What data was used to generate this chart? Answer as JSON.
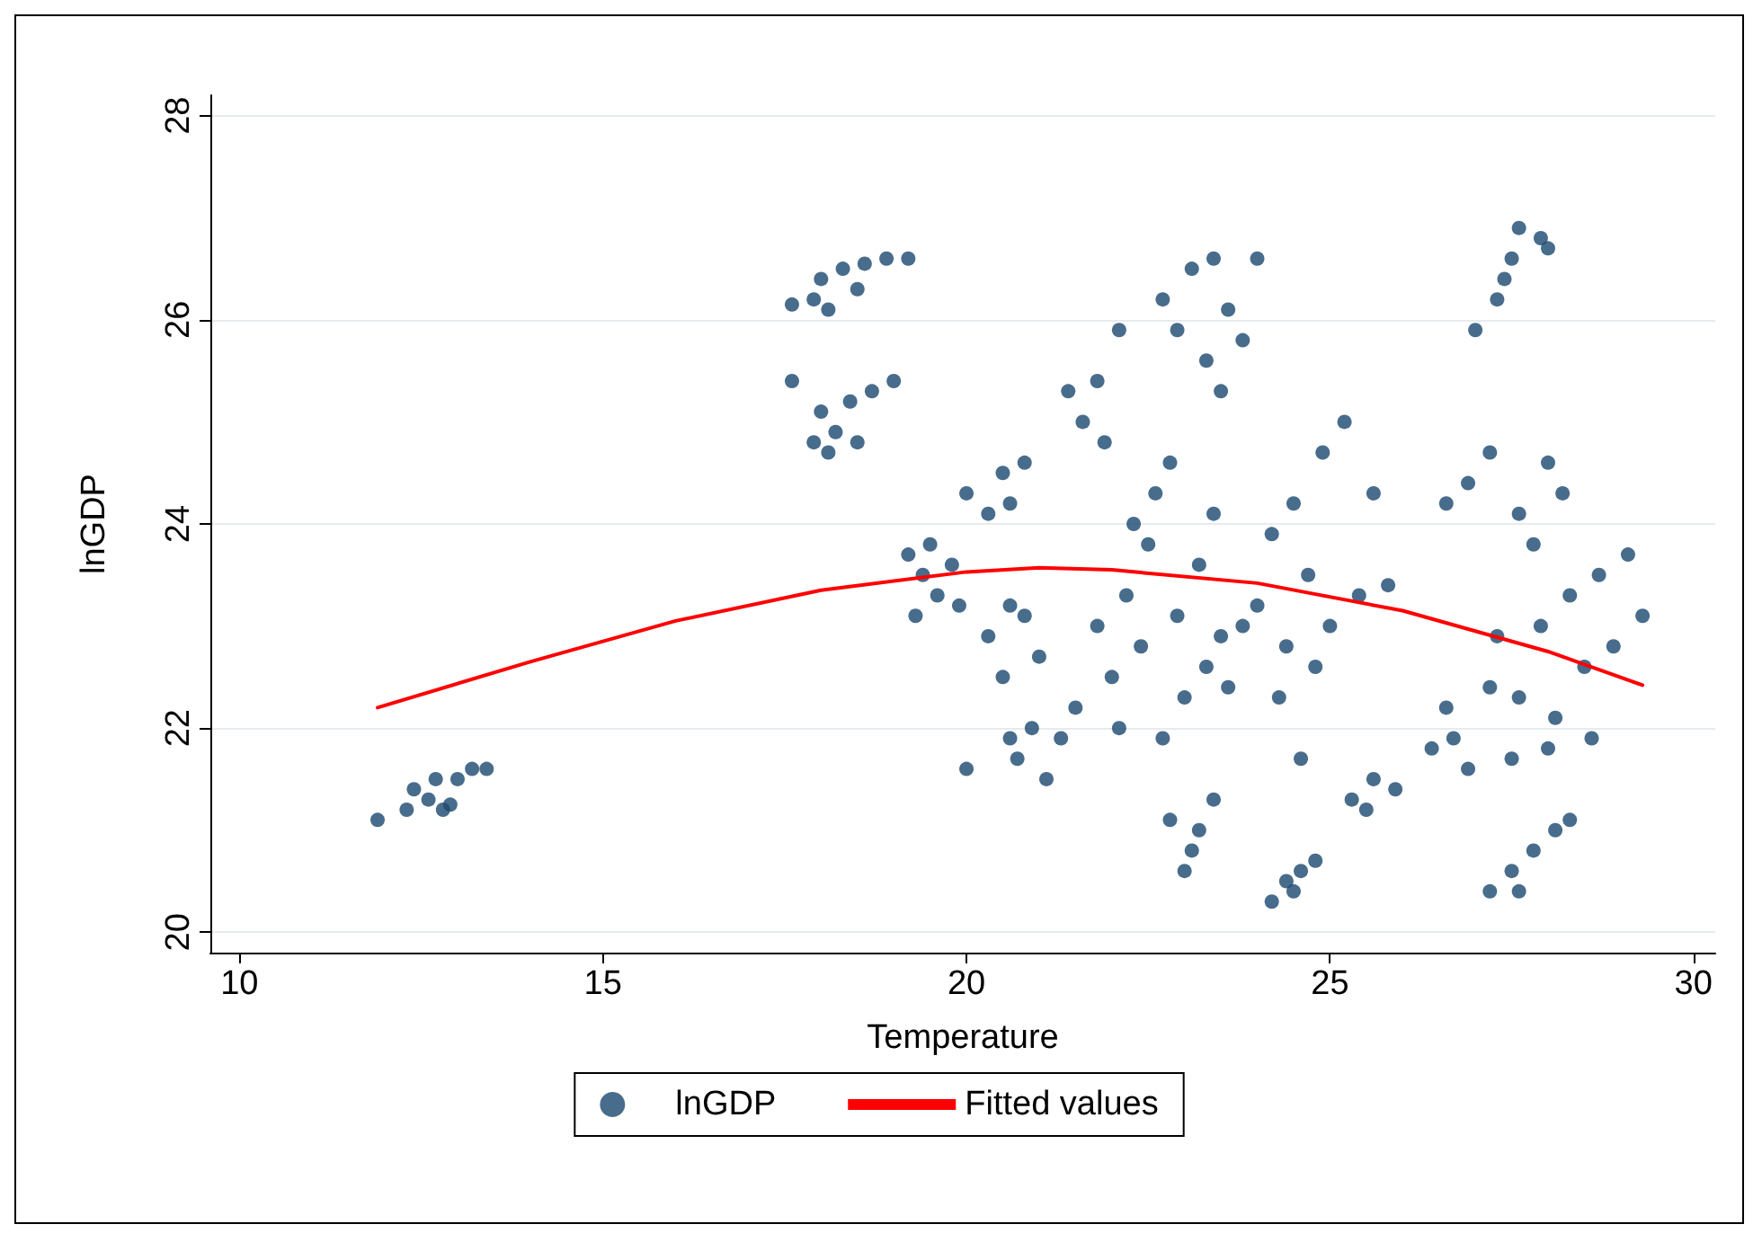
{
  "chart_data": {
    "type": "scatter",
    "xlabel": "Temperature",
    "ylabel": "lnGDP",
    "xlim": [
      9.6,
      30.3
    ],
    "ylim": [
      19.8,
      28.2
    ],
    "xticks": [
      10,
      15,
      20,
      25,
      30
    ],
    "yticks": [
      20,
      22,
      24,
      26,
      28
    ],
    "grid": "y",
    "legend": "bottom",
    "marker": "circle",
    "series": [
      {
        "name": "lnGDP",
        "color": "#1a476f",
        "x": [
          11.9,
          12.3,
          12.4,
          12.6,
          12.7,
          12.9,
          13.0,
          13.2,
          13.4,
          12.8,
          17.6,
          17.9,
          18.0,
          18.3,
          18.6,
          18.9,
          19.2,
          18.5,
          18.1,
          17.6,
          17.9,
          18.0,
          18.2,
          18.4,
          18.7,
          19.0,
          18.5,
          18.1,
          19.2,
          19.4,
          19.6,
          19.8,
          19.5,
          19.9,
          19.3,
          20.0,
          20.3,
          20.5,
          20.8,
          20.6,
          20.3,
          20.5,
          20.8,
          21.0,
          20.6,
          20.0,
          20.7,
          20.9,
          21.1,
          21.3,
          21.5,
          20.6,
          21.4,
          21.6,
          21.8,
          21.9,
          22.1,
          21.8,
          22.0,
          22.2,
          22.4,
          22.5,
          22.6,
          22.8,
          22.9,
          23.0,
          23.2,
          23.4,
          23.5,
          22.1,
          22.7,
          23.3,
          22.3,
          23.8,
          23.6,
          22.7,
          22.9,
          23.1,
          23.3,
          23.5,
          23.6,
          23.8,
          23.4,
          24.0,
          22.8,
          23.0,
          23.2,
          23.4,
          23.1,
          24.0,
          24.2,
          24.4,
          24.5,
          24.7,
          24.8,
          24.9,
          25.0,
          25.2,
          25.4,
          25.6,
          25.8,
          24.3,
          24.6,
          24.2,
          24.4,
          24.6,
          24.8,
          24.5,
          25.3,
          25.6,
          25.9,
          25.5,
          26.4,
          26.6,
          26.9,
          27.2,
          26.7,
          27.0,
          27.3,
          27.5,
          27.6,
          27.9,
          28.0,
          27.4,
          26.6,
          26.9,
          27.2,
          27.6,
          27.8,
          28.0,
          28.2,
          27.3,
          27.6,
          27.9,
          28.1,
          28.3,
          28.5,
          28.7,
          28.9,
          29.1,
          29.3,
          28.0,
          28.6,
          27.5,
          27.2,
          27.5,
          27.8,
          28.1,
          28.3,
          27.6
        ],
        "values": [
          21.1,
          21.2,
          21.4,
          21.3,
          21.5,
          21.25,
          21.5,
          21.6,
          21.6,
          21.2,
          26.15,
          26.2,
          26.4,
          26.5,
          26.55,
          26.6,
          26.6,
          26.3,
          26.1,
          25.4,
          24.8,
          25.1,
          24.9,
          25.2,
          25.3,
          25.4,
          24.8,
          24.7,
          23.7,
          23.5,
          23.3,
          23.6,
          23.8,
          23.2,
          23.1,
          24.3,
          24.1,
          24.5,
          24.6,
          24.2,
          22.9,
          22.5,
          23.1,
          22.7,
          23.2,
          21.6,
          21.7,
          22.0,
          21.5,
          21.9,
          22.2,
          21.9,
          25.3,
          25.0,
          25.4,
          24.8,
          25.9,
          23.0,
          22.5,
          23.3,
          22.8,
          23.8,
          24.3,
          24.6,
          23.1,
          22.3,
          23.6,
          24.1,
          22.9,
          22.0,
          21.9,
          22.6,
          24.0,
          23.0,
          22.4,
          26.2,
          25.9,
          26.5,
          25.6,
          25.3,
          26.1,
          25.8,
          26.6,
          26.6,
          21.1,
          20.6,
          21.0,
          21.3,
          20.8,
          23.2,
          23.9,
          22.8,
          24.2,
          23.5,
          22.6,
          24.7,
          23.0,
          25.0,
          23.3,
          24.3,
          23.4,
          22.3,
          21.7,
          20.3,
          20.5,
          20.6,
          20.7,
          20.4,
          21.3,
          21.5,
          21.4,
          21.2,
          21.8,
          22.2,
          21.6,
          22.4,
          21.9,
          25.9,
          26.2,
          26.6,
          26.9,
          26.8,
          26.7,
          26.4,
          24.2,
          24.4,
          24.7,
          24.1,
          23.8,
          24.6,
          24.3,
          22.9,
          22.3,
          23.0,
          22.1,
          23.3,
          22.6,
          23.5,
          22.8,
          23.7,
          23.1,
          21.8,
          21.9,
          21.7,
          20.4,
          20.6,
          20.8,
          21.0,
          21.1,
          20.4
        ]
      },
      {
        "name": "Fitted values",
        "type": "line",
        "color": "#ff0000",
        "marker": "none",
        "line_style": "solid",
        "x": [
          11.9,
          14,
          16,
          18,
          20,
          21,
          22,
          24,
          26,
          28,
          29.3
        ],
        "values": [
          22.2,
          22.65,
          23.05,
          23.35,
          23.53,
          23.57,
          23.55,
          23.42,
          23.15,
          22.75,
          22.42
        ]
      }
    ]
  }
}
